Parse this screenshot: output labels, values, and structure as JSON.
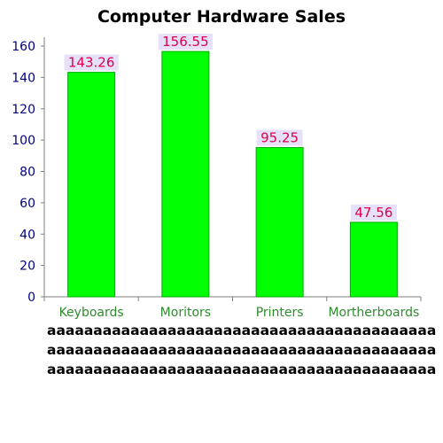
{
  "chart_data": {
    "type": "bar",
    "title": "Computer Hardware Sales",
    "categories": [
      "Keyboards",
      "Moritors",
      "Printers",
      "Mortherboards"
    ],
    "values": [
      143.26,
      156.55,
      95.25,
      47.56
    ],
    "value_labels": [
      "143.26",
      "156.55",
      "95.25",
      "47.56"
    ],
    "y_ticks": [
      0,
      20,
      40,
      60,
      80,
      100,
      120,
      140,
      160
    ],
    "ylim": [
      0,
      160
    ],
    "grid": false,
    "bar_color": "#00ff00",
    "bar_edge_color": "#00aa00",
    "label_box_color": "#e6e0f8",
    "label_text_color": "#e0004a",
    "category_text_color": "#2e8b2e",
    "tick_text_color": "#000080",
    "axis_color": "#808080"
  },
  "notes": [
    "aaaaaaaaaaaaaaaaaaaaaaaaaaaaaaaaaaaaaaaaaa",
    "aaaaaaaaaaaaaaaaaaaaaaaaaaaaaaaaaaaaaaaaaa",
    "aaaaaaaaaaaaaaaaaaaaaaaaaaaaaaaaaaaaaaaaaa"
  ]
}
